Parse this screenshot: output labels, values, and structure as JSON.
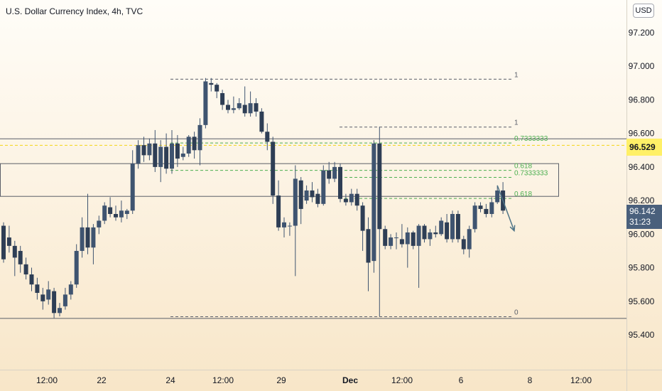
{
  "title": "U.S. Dollar Currency Index, 4h, TVC",
  "currency_button": "USD",
  "colors": {
    "candle": "#3f5470",
    "fib_gray": "#5b5f6a",
    "fib_green": "#4caf50",
    "arrow": "#4f7487",
    "highlight_line": "#f5d82a",
    "last_tag": "#4a607c"
  },
  "last_price": {
    "value": "96.142",
    "countdown": "31:23"
  },
  "price_tags": {
    "highlight": "96.529"
  },
  "chart_data": {
    "type": "candlestick",
    "title": "U.S. Dollar Currency Index, 4h, TVC",
    "y_ticks": [
      "97.200",
      "97.000",
      "96.800",
      "96.600",
      "96.400",
      "96.200",
      "96.000",
      "95.800",
      "95.600",
      "95.400"
    ],
    "x_ticks": [
      "12:00",
      "22",
      "24",
      "12:00",
      "29",
      "Dec",
      "12:00",
      "6",
      "8",
      "12:00"
    ],
    "ylim": [
      95.28,
      97.36
    ],
    "grid": false,
    "fib_levels": {
      "left": {
        "labels": [
          "1",
          "0.7333333",
          "0.618",
          "0"
        ],
        "values": [
          96.925,
          96.545,
          96.382,
          95.51
        ]
      },
      "right": {
        "labels": [
          "1",
          "0.7333333",
          "0.618"
        ],
        "values": [
          96.64,
          96.34,
          96.215
        ]
      }
    },
    "horizontal_lines": [
      96.57,
      95.5
    ],
    "rectangle": {
      "top": 96.42,
      "bottom": 96.225
    },
    "highlight_price": 96.529,
    "candles": [
      [
        96.05,
        95.85,
        96.07,
        95.83
      ],
      [
        95.98,
        95.93,
        96.05,
        95.89
      ],
      [
        95.93,
        95.86,
        95.96,
        95.75
      ],
      [
        95.9,
        95.82,
        95.93,
        95.77
      ],
      [
        95.82,
        95.76,
        95.86,
        95.73
      ],
      [
        95.76,
        95.7,
        95.8,
        95.66
      ],
      [
        95.7,
        95.65,
        95.74,
        95.61
      ],
      [
        95.64,
        95.6,
        95.68,
        95.55
      ],
      [
        95.61,
        95.67,
        95.72,
        95.58
      ],
      [
        95.66,
        95.53,
        95.68,
        95.5
      ],
      [
        95.53,
        95.56,
        95.59,
        95.51
      ],
      [
        95.57,
        95.64,
        95.68,
        95.55
      ],
      [
        95.64,
        95.7,
        95.72,
        95.61
      ],
      [
        95.7,
        95.9,
        95.94,
        95.68
      ],
      [
        95.9,
        96.04,
        96.1,
        95.86
      ],
      [
        96.04,
        95.92,
        96.24,
        95.88
      ],
      [
        95.92,
        96.04,
        96.06,
        95.82
      ],
      [
        96.04,
        96.08,
        96.11,
        96.0
      ],
      [
        96.08,
        96.17,
        96.19,
        96.06
      ],
      [
        96.16,
        96.12,
        96.22,
        96.1
      ],
      [
        96.12,
        96.1,
        96.17,
        96.08
      ],
      [
        96.1,
        96.14,
        96.2,
        96.07
      ],
      [
        96.12,
        96.14,
        96.15,
        96.09
      ],
      [
        96.14,
        96.42,
        96.5,
        96.12
      ],
      [
        96.42,
        96.53,
        96.56,
        96.39
      ],
      [
        96.53,
        96.47,
        96.58,
        96.43
      ],
      [
        96.47,
        96.54,
        96.57,
        96.44
      ],
      [
        96.54,
        96.4,
        96.62,
        96.37
      ],
      [
        96.4,
        96.52,
        96.56,
        96.31
      ],
      [
        96.52,
        96.39,
        96.6,
        96.36
      ],
      [
        96.39,
        96.54,
        96.62,
        96.36
      ],
      [
        96.54,
        96.45,
        96.59,
        96.4
      ],
      [
        96.46,
        96.48,
        96.52,
        96.44
      ],
      [
        96.48,
        96.58,
        96.59,
        96.46
      ],
      [
        96.58,
        96.5,
        96.61,
        96.45
      ],
      [
        96.5,
        96.65,
        96.69,
        96.41
      ],
      [
        96.65,
        96.91,
        96.93,
        96.63
      ],
      [
        96.9,
        96.89,
        96.93,
        96.85
      ],
      [
        96.89,
        96.85,
        96.9,
        96.81
      ],
      [
        96.84,
        96.77,
        96.86,
        96.74
      ],
      [
        96.77,
        96.74,
        96.8,
        96.72
      ],
      [
        96.74,
        96.75,
        96.82,
        96.72
      ],
      [
        96.75,
        96.78,
        96.81,
        96.74
      ],
      [
        96.77,
        96.72,
        96.88,
        96.7
      ],
      [
        96.72,
        96.78,
        96.85,
        96.7
      ],
      [
        96.78,
        96.73,
        96.81,
        96.7
      ],
      [
        96.73,
        96.61,
        96.75,
        96.6
      ],
      [
        96.61,
        96.55,
        96.66,
        96.5
      ],
      [
        96.55,
        96.23,
        96.58,
        96.18
      ],
      [
        96.23,
        96.04,
        96.32,
        96.02
      ],
      [
        96.04,
        96.07,
        96.1,
        95.98
      ],
      [
        96.05,
        96.05,
        96.07,
        95.99
      ],
      [
        96.05,
        96.33,
        96.41,
        95.75
      ],
      [
        96.32,
        96.15,
        96.34,
        96.06
      ],
      [
        96.2,
        96.26,
        96.29,
        96.18
      ],
      [
        96.26,
        96.22,
        96.31,
        96.19
      ],
      [
        96.24,
        96.18,
        96.27,
        96.16
      ],
      [
        96.18,
        96.38,
        96.41,
        96.17
      ],
      [
        96.38,
        96.33,
        96.43,
        96.3
      ],
      [
        96.33,
        96.4,
        96.43,
        96.31
      ],
      [
        96.4,
        96.21,
        96.42,
        96.19
      ],
      [
        96.21,
        96.19,
        96.24,
        96.17
      ],
      [
        96.19,
        96.24,
        96.27,
        96.17
      ],
      [
        96.24,
        96.17,
        96.27,
        96.14
      ],
      [
        96.17,
        96.02,
        96.19,
        95.9
      ],
      [
        96.03,
        95.83,
        96.1,
        95.66
      ],
      [
        95.84,
        96.54,
        96.56,
        95.77
      ],
      [
        96.54,
        96.03,
        96.64,
        95.51
      ],
      [
        96.03,
        95.93,
        96.05,
        95.91
      ],
      [
        95.93,
        95.98,
        96.0,
        95.91
      ],
      [
        95.98,
        95.98,
        96.01,
        95.91
      ],
      [
        95.97,
        95.94,
        96.06,
        95.92
      ],
      [
        95.94,
        96.01,
        96.04,
        95.8
      ],
      [
        96.01,
        95.93,
        96.02,
        95.91
      ],
      [
        95.93,
        96.05,
        96.06,
        95.68
      ],
      [
        96.05,
        95.97,
        96.06,
        95.95
      ],
      [
        95.97,
        96.01,
        96.03,
        95.93
      ],
      [
        96.01,
        96.0,
        96.05,
        95.98
      ],
      [
        96.0,
        96.08,
        96.1,
        95.99
      ],
      [
        96.07,
        95.97,
        96.12,
        95.95
      ],
      [
        95.97,
        96.12,
        96.14,
        95.95
      ],
      [
        96.12,
        95.97,
        96.14,
        95.95
      ],
      [
        95.97,
        95.91,
        95.99,
        95.88
      ],
      [
        95.91,
        96.03,
        96.05,
        95.86
      ],
      [
        96.03,
        96.17,
        96.19,
        96.01
      ],
      [
        96.17,
        96.15,
        96.19,
        96.13
      ],
      [
        96.15,
        96.12,
        96.18,
        96.1
      ],
      [
        96.12,
        96.19,
        96.22,
        96.1
      ],
      [
        96.19,
        96.26,
        96.29,
        96.18
      ],
      [
        96.26,
        96.14,
        96.31,
        96.12
      ]
    ],
    "annotation_arrow": {
      "from": [
        88,
        96.29
      ],
      "to": [
        91,
        96.02
      ]
    }
  }
}
